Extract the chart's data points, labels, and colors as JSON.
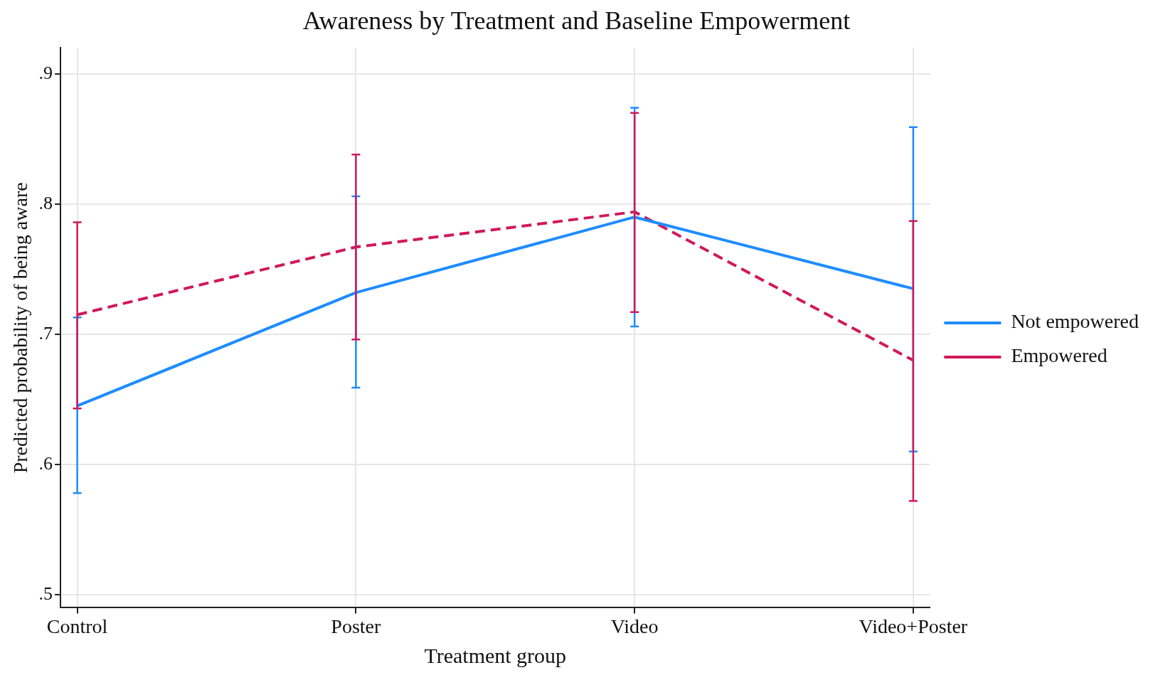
{
  "chart_data": {
    "type": "line",
    "title": "Awareness by Treatment and Baseline Empowerment",
    "xlabel": "Treatment group",
    "ylabel": "Predicted probability of being aware",
    "categories": [
      "Control",
      "Poster",
      "Video",
      "Video+Poster"
    ],
    "series": [
      {
        "name": "Not empowered",
        "color": "#1e8cff",
        "line_style": "solid",
        "values": [
          0.645,
          0.732,
          0.79,
          0.735
        ],
        "errors": [
          [
            0.578,
            0.713
          ],
          [
            0.659,
            0.806
          ],
          [
            0.706,
            0.874
          ],
          [
            0.61,
            0.859
          ]
        ]
      },
      {
        "name": "Empowered",
        "color": "#d0195a",
        "line_style": "dashed",
        "values": [
          0.715,
          0.767,
          0.794,
          0.68
        ],
        "errors": [
          [
            0.643,
            0.786
          ],
          [
            0.696,
            0.838
          ],
          [
            0.717,
            0.87
          ],
          [
            0.572,
            0.787
          ]
        ]
      }
    ],
    "ylim": [
      0.49,
      0.92
    ],
    "yticks": [
      {
        "value": 0.5,
        "label": ".5"
      },
      {
        "value": 0.6,
        "label": ".6"
      },
      {
        "value": 0.7,
        "label": ".7"
      },
      {
        "value": 0.8,
        "label": ".8"
      },
      {
        "value": 0.9,
        "label": ".9"
      }
    ],
    "grid": true,
    "legend": "right",
    "marker": "none"
  }
}
